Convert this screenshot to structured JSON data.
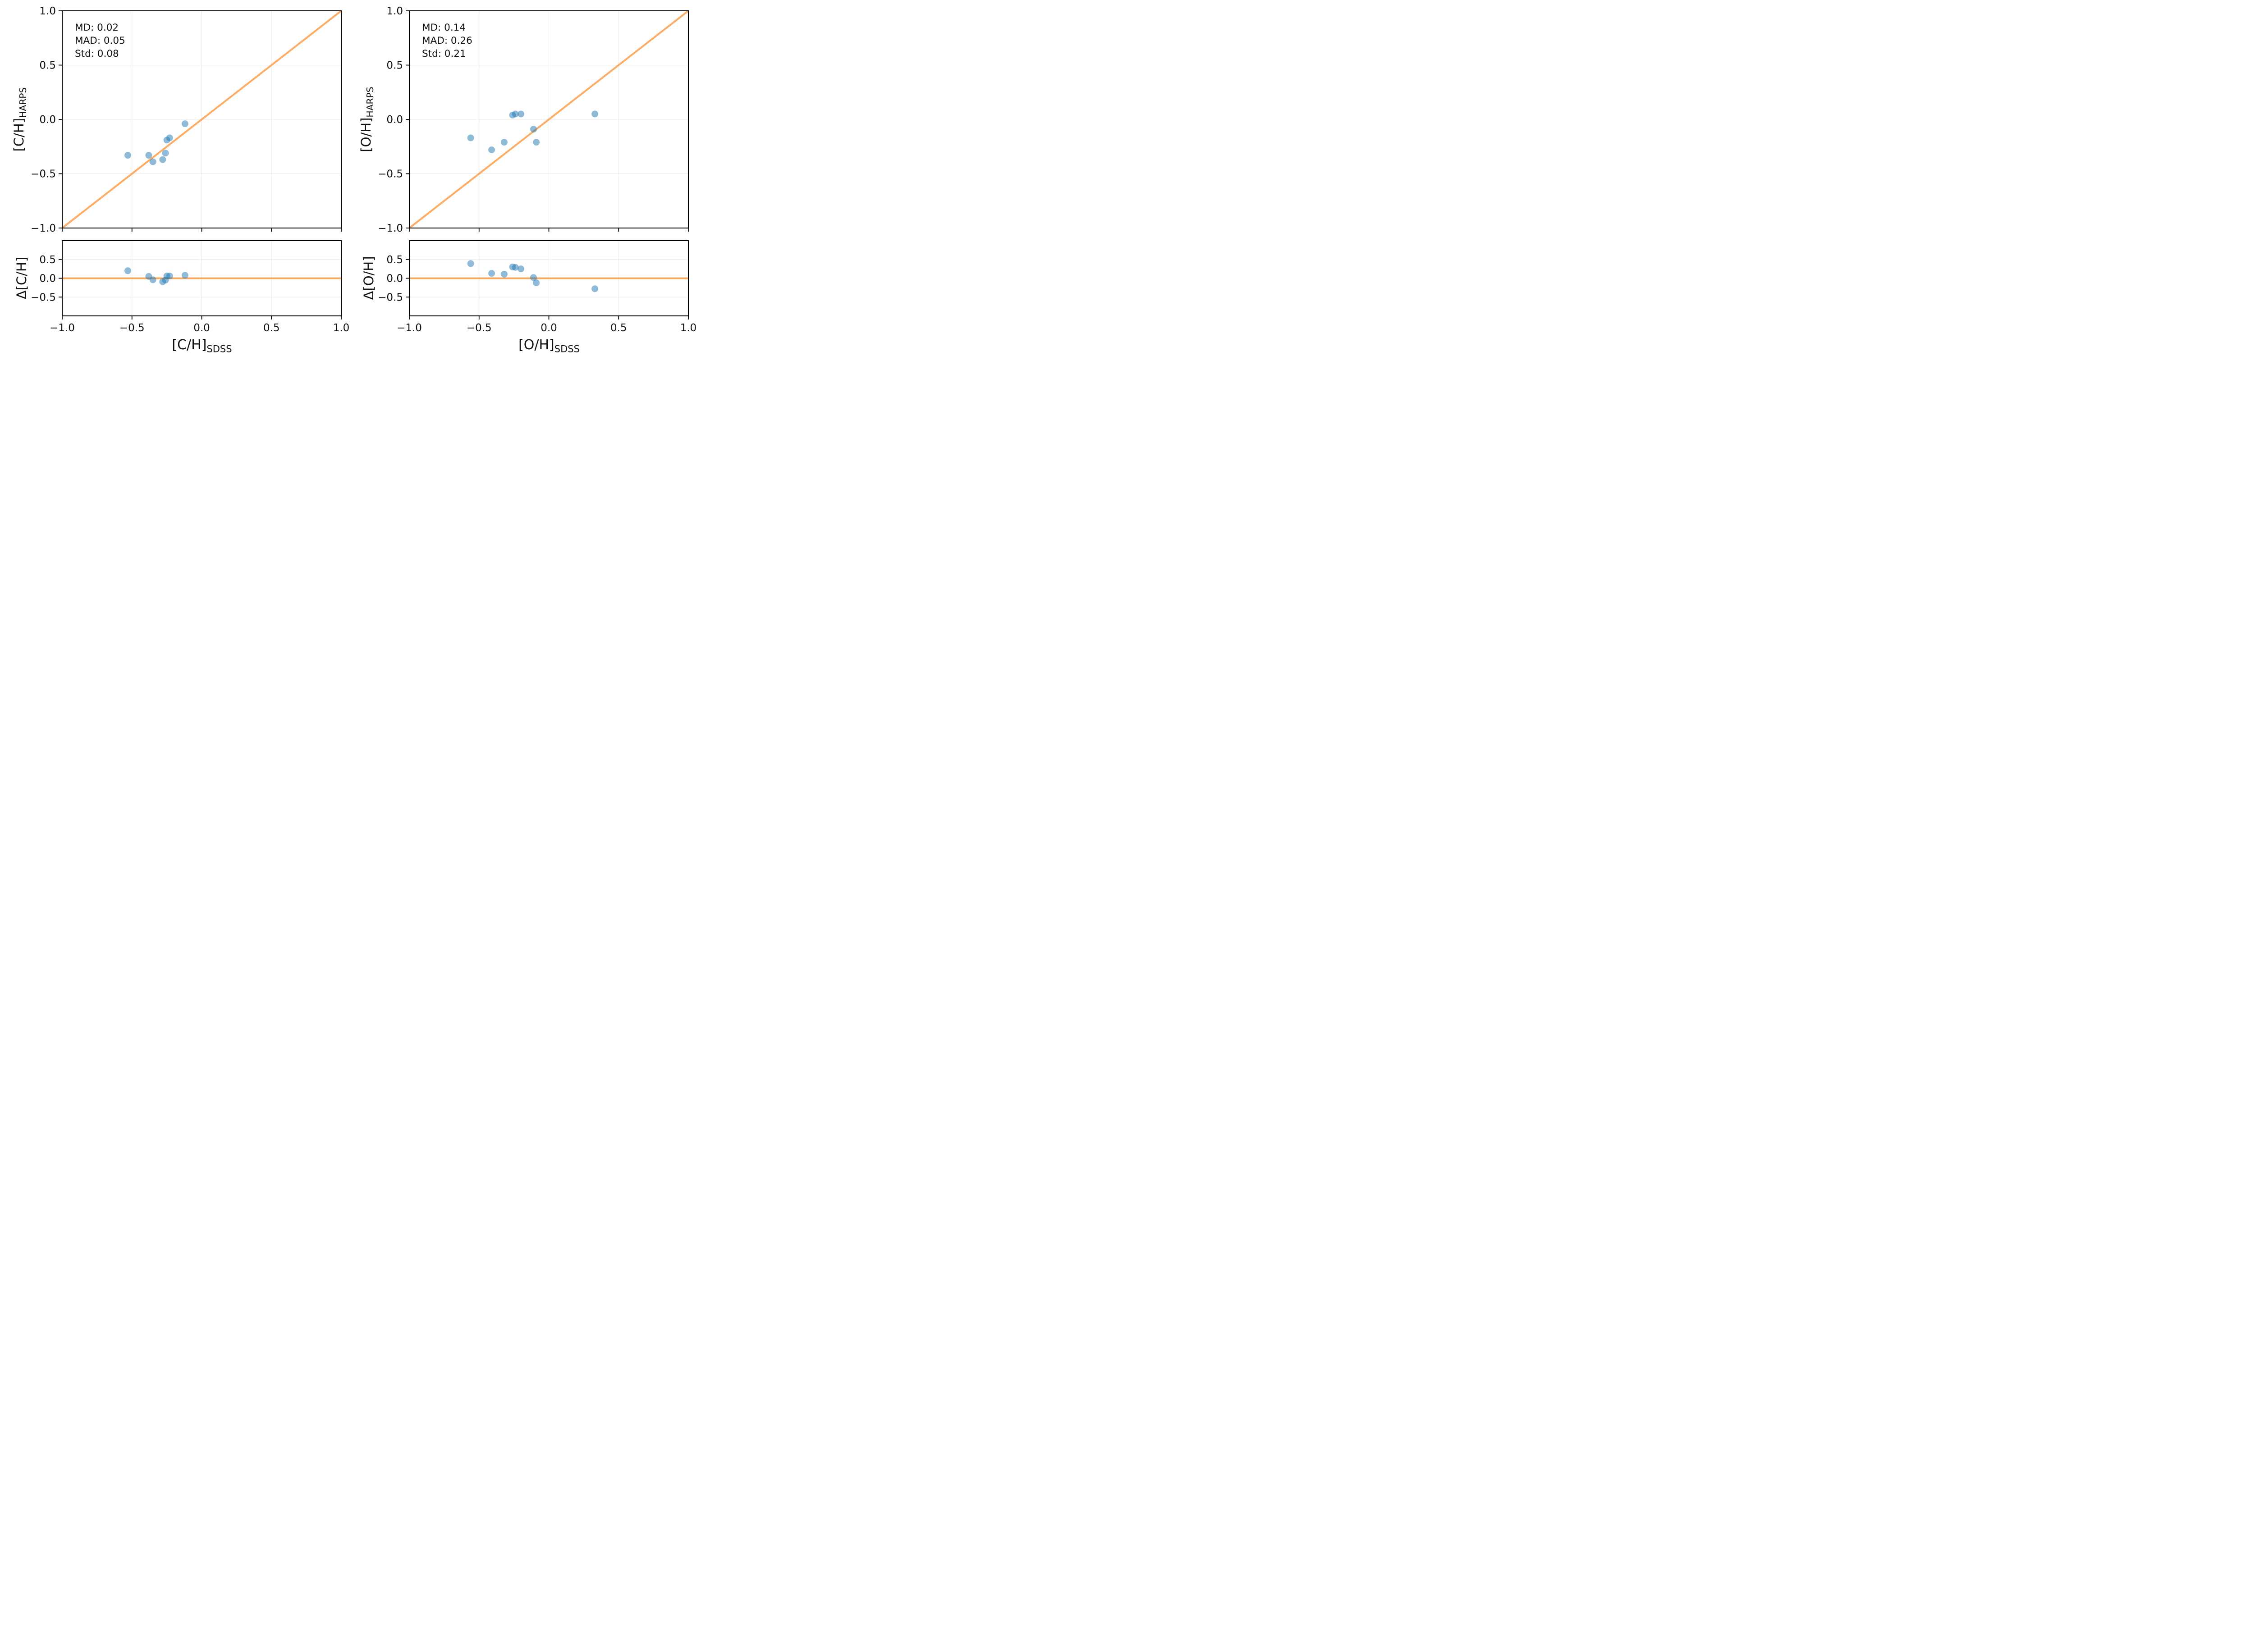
{
  "figure": {
    "background": "#ffffff",
    "accent_color": "#ff7f0e",
    "point_color": "#1f77b4",
    "grid_color": "#e8e8e8",
    "axis_color": "#000000",
    "text_color": "#111111"
  },
  "chart_data": [
    {
      "id": "ch_main",
      "type": "scatter",
      "ylabel_main": "[C/H]",
      "ylabel_sub": "HARPS",
      "xlim": [
        -1.0,
        1.0
      ],
      "ylim": [
        -1.0,
        1.0
      ],
      "ref_line": "identity",
      "grid": true,
      "legend": "none",
      "show_xtick_labels": false,
      "stats_lines": [
        "MD: 0.02",
        "MAD: 0.05",
        "Std: 0.08"
      ],
      "xticks": [
        {
          "v": -1.0,
          "label": "−1.0"
        },
        {
          "v": -0.5,
          "label": "−0.5"
        },
        {
          "v": 0.0,
          "label": "0.0"
        },
        {
          "v": 0.5,
          "label": "0.5"
        },
        {
          "v": 1.0,
          "label": "1.0"
        }
      ],
      "yticks": [
        {
          "v": -1.0,
          "label": "−1.0"
        },
        {
          "v": -0.5,
          "label": "−0.5"
        },
        {
          "v": 0.0,
          "label": "0.0"
        },
        {
          "v": 0.5,
          "label": "0.5"
        },
        {
          "v": 1.0,
          "label": "1.0"
        }
      ],
      "points": [
        [
          -0.53,
          -0.33
        ],
        [
          -0.38,
          -0.33
        ],
        [
          -0.35,
          -0.39
        ],
        [
          -0.28,
          -0.37
        ],
        [
          -0.26,
          -0.31
        ],
        [
          -0.25,
          -0.19
        ],
        [
          -0.23,
          -0.17
        ],
        [
          -0.12,
          -0.04
        ]
      ]
    },
    {
      "id": "ch_resid",
      "type": "scatter",
      "ylabel": "Δ[C/H]",
      "xlabel_main": "[C/H]",
      "xlabel_sub": "SDSS",
      "xlim": [
        -1.0,
        1.0
      ],
      "ylim": [
        -1.0,
        1.0
      ],
      "ref_line": "hline0",
      "grid": true,
      "legend": "none",
      "show_xtick_labels": true,
      "xticks": [
        {
          "v": -1.0,
          "label": "−1.0"
        },
        {
          "v": -0.5,
          "label": "−0.5"
        },
        {
          "v": 0.0,
          "label": "0.0"
        },
        {
          "v": 0.5,
          "label": "0.5"
        },
        {
          "v": 1.0,
          "label": "1.0"
        }
      ],
      "yticks": [
        {
          "v": -0.5,
          "label": "−0.5"
        },
        {
          "v": 0.0,
          "label": "0.0"
        },
        {
          "v": 0.5,
          "label": "0.5"
        }
      ],
      "points": [
        [
          -0.53,
          0.2
        ],
        [
          -0.38,
          0.05
        ],
        [
          -0.35,
          -0.04
        ],
        [
          -0.28,
          -0.09
        ],
        [
          -0.26,
          -0.05
        ],
        [
          -0.25,
          0.06
        ],
        [
          -0.23,
          0.06
        ],
        [
          -0.12,
          0.08
        ]
      ]
    },
    {
      "id": "oh_main",
      "type": "scatter",
      "ylabel_main": "[O/H]",
      "ylabel_sub": "HARPS",
      "xlim": [
        -1.0,
        1.0
      ],
      "ylim": [
        -1.0,
        1.0
      ],
      "ref_line": "identity",
      "grid": true,
      "legend": "none",
      "show_xtick_labels": false,
      "stats_lines": [
        "MD: 0.14",
        "MAD: 0.26",
        "Std: 0.21"
      ],
      "xticks": [
        {
          "v": -1.0,
          "label": "−1.0"
        },
        {
          "v": -0.5,
          "label": "−0.5"
        },
        {
          "v": 0.0,
          "label": "0.0"
        },
        {
          "v": 0.5,
          "label": "0.5"
        },
        {
          "v": 1.0,
          "label": "1.0"
        }
      ],
      "yticks": [
        {
          "v": -1.0,
          "label": "−1.0"
        },
        {
          "v": -0.5,
          "label": "−0.5"
        },
        {
          "v": 0.0,
          "label": "0.0"
        },
        {
          "v": 0.5,
          "label": "0.5"
        },
        {
          "v": 1.0,
          "label": "1.0"
        }
      ],
      "points": [
        [
          -0.56,
          -0.17
        ],
        [
          -0.41,
          -0.28
        ],
        [
          -0.32,
          -0.21
        ],
        [
          -0.26,
          0.04
        ],
        [
          -0.24,
          0.05
        ],
        [
          -0.2,
          0.05
        ],
        [
          -0.11,
          -0.09
        ],
        [
          -0.09,
          -0.21
        ],
        [
          0.33,
          0.05
        ]
      ]
    },
    {
      "id": "oh_resid",
      "type": "scatter",
      "ylabel": "Δ[O/H]",
      "xlabel_main": "[O/H]",
      "xlabel_sub": "SDSS",
      "xlim": [
        -1.0,
        1.0
      ],
      "ylim": [
        -1.0,
        1.0
      ],
      "ref_line": "hline0",
      "grid": true,
      "legend": "none",
      "show_xtick_labels": true,
      "xticks": [
        {
          "v": -1.0,
          "label": "−1.0"
        },
        {
          "v": -0.5,
          "label": "−0.5"
        },
        {
          "v": 0.0,
          "label": "0.0"
        },
        {
          "v": 0.5,
          "label": "0.5"
        },
        {
          "v": 1.0,
          "label": "1.0"
        }
      ],
      "yticks": [
        {
          "v": -0.5,
          "label": "−0.5"
        },
        {
          "v": 0.0,
          "label": "0.0"
        },
        {
          "v": 0.5,
          "label": "0.5"
        }
      ],
      "points": [
        [
          -0.56,
          0.39
        ],
        [
          -0.41,
          0.13
        ],
        [
          -0.32,
          0.11
        ],
        [
          -0.26,
          0.3
        ],
        [
          -0.24,
          0.29
        ],
        [
          -0.2,
          0.25
        ],
        [
          -0.11,
          0.02
        ],
        [
          -0.09,
          -0.12
        ],
        [
          0.33,
          -0.28
        ]
      ]
    }
  ]
}
